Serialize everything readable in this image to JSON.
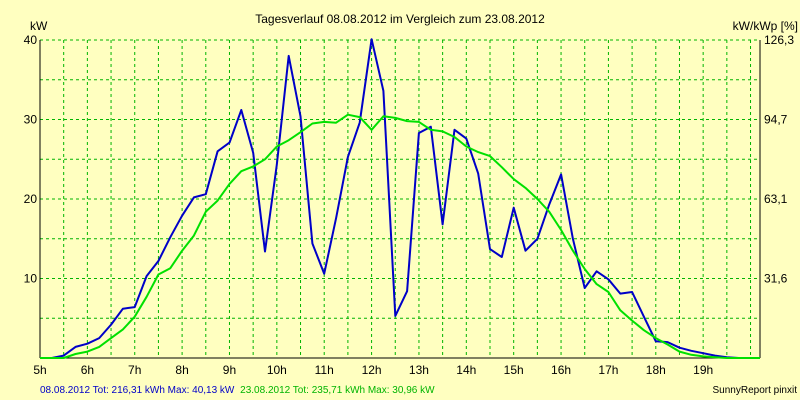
{
  "chart_data": {
    "type": "line",
    "title": "Tagesverlauf 08.08.2012 im Vergleich zum 23.08.2012",
    "ylabel_left": "kW",
    "ylabel_right": "kW/kWp [%]",
    "xlim": [
      5,
      20.2
    ],
    "ylim": [
      0,
      40
    ],
    "grid": true,
    "x_ticks": [
      5,
      6,
      7,
      8,
      9,
      10,
      11,
      12,
      13,
      14,
      15,
      16,
      17,
      18,
      19
    ],
    "x_tick_labels": [
      "5h",
      "6h",
      "7h",
      "8h",
      "9h",
      "10h",
      "11h",
      "12h",
      "13h",
      "14h",
      "15h",
      "16h",
      "17h",
      "18h",
      "19h"
    ],
    "y_ticks_left": [
      10,
      20,
      30,
      40
    ],
    "y_tick_labels_left": [
      "10",
      "20",
      "30",
      "40"
    ],
    "y_ticks_right": [
      10,
      20,
      30,
      40
    ],
    "y_tick_labels_right": [
      "31,6",
      "63,1",
      "94,7",
      "126,3"
    ],
    "series": [
      {
        "name": "08.08.2012",
        "color": "#0000c8",
        "x": [
          5.0,
          5.25,
          5.5,
          5.75,
          6.0,
          6.25,
          6.5,
          6.75,
          7.0,
          7.25,
          7.5,
          7.75,
          8.0,
          8.25,
          8.5,
          8.75,
          9.0,
          9.25,
          9.5,
          9.75,
          10.0,
          10.25,
          10.5,
          10.75,
          11.0,
          11.25,
          11.5,
          11.75,
          12.0,
          12.25,
          12.5,
          12.75,
          13.0,
          13.25,
          13.5,
          13.75,
          14.0,
          14.25,
          14.5,
          14.75,
          15.0,
          15.25,
          15.5,
          15.75,
          16.0,
          16.25,
          16.5,
          16.75,
          17.0,
          17.25,
          17.5,
          17.75,
          18.0,
          18.25,
          18.5,
          18.75,
          19.0,
          19.25,
          19.5,
          19.75,
          20.0,
          20.2
        ],
        "values": [
          0,
          0,
          0.3,
          1.4,
          1.8,
          2.5,
          4.2,
          6.2,
          6.4,
          10.3,
          12.2,
          15.2,
          17.9,
          20.2,
          20.6,
          26.0,
          27.1,
          31.2,
          25.8,
          13.4,
          24.3,
          38.0,
          30.4,
          14.4,
          10.6,
          17.6,
          25.3,
          29.6,
          40.1,
          33.6,
          5.3,
          8.4,
          28.3,
          29.1,
          16.8,
          28.7,
          27.6,
          23.2,
          13.7,
          12.7,
          18.9,
          13.5,
          15.0,
          19.3,
          23.1,
          15.0,
          8.8,
          10.9,
          9.9,
          8.1,
          8.3,
          5.2,
          2.1,
          2.0,
          1.3,
          0.9,
          0.6,
          0.3,
          0.1,
          0,
          0,
          0
        ]
      },
      {
        "name": "23.08.2012",
        "color": "#00e000",
        "x": [
          5.0,
          5.25,
          5.5,
          5.75,
          6.0,
          6.25,
          6.5,
          6.75,
          7.0,
          7.25,
          7.5,
          7.75,
          8.0,
          8.25,
          8.5,
          8.75,
          9.0,
          9.25,
          9.5,
          9.75,
          10.0,
          10.25,
          10.5,
          10.75,
          11.0,
          11.25,
          11.5,
          11.75,
          12.0,
          12.25,
          12.5,
          12.75,
          13.0,
          13.25,
          13.5,
          13.75,
          14.0,
          14.25,
          14.5,
          14.75,
          15.0,
          15.25,
          15.5,
          15.75,
          16.0,
          16.25,
          16.5,
          16.75,
          17.0,
          17.25,
          17.5,
          17.75,
          18.0,
          18.25,
          18.5,
          18.75,
          19.0,
          19.25,
          19.5,
          19.75,
          20.0,
          20.2
        ],
        "values": [
          0,
          0,
          0,
          0.5,
          0.8,
          1.4,
          2.5,
          3.6,
          5.2,
          7.7,
          10.5,
          11.3,
          13.5,
          15.4,
          18.4,
          19.8,
          21.9,
          23.5,
          24.1,
          25.0,
          26.6,
          27.4,
          28.4,
          29.5,
          29.7,
          29.6,
          30.6,
          30.3,
          28.7,
          30.4,
          30.2,
          29.8,
          29.7,
          28.7,
          28.5,
          27.8,
          26.6,
          25.9,
          25.4,
          24.0,
          22.5,
          21.4,
          20.0,
          18.4,
          16.1,
          13.5,
          11.2,
          9.3,
          8.3,
          6.0,
          4.7,
          3.5,
          2.5,
          1.7,
          0.8,
          0.4,
          0.2,
          0.1,
          0,
          0,
          0,
          0
        ]
      }
    ]
  },
  "footer": {
    "series1_summary": "08.08.2012 Tot: 216,31 kWh Max: 40,13 kW",
    "series2_summary": "23.08.2012 Tot: 235,71 kWh Max: 30,96 kW",
    "credit": "SunnyReport pinxit"
  },
  "colors": {
    "background": "#ffffc0",
    "grid": "#00b400",
    "axis": "#000000"
  }
}
